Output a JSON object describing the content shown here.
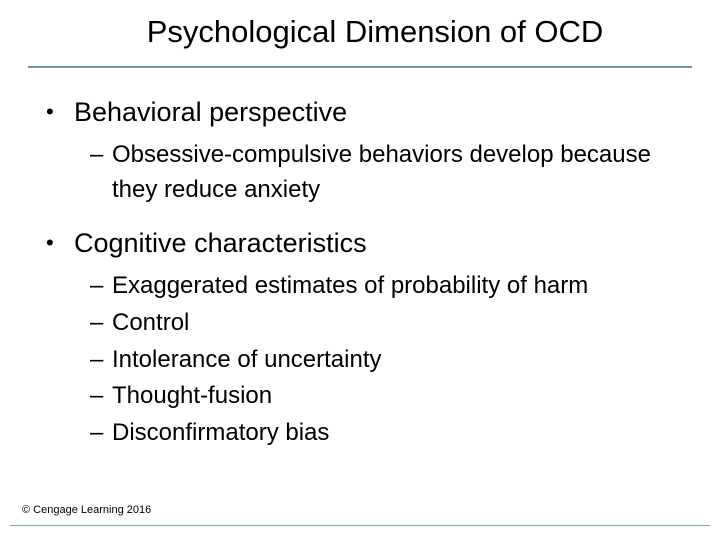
{
  "colors": {
    "text": "#000000",
    "background": "#ffffff",
    "rule": "#6a9aa3",
    "bottom_rule": "#7aa8b0"
  },
  "typography": {
    "family": "Arial",
    "title_fontsize": 31,
    "l1_fontsize": 27,
    "l2_fontsize": 24,
    "copyright_fontsize": 11
  },
  "title": "Psychological Dimension of OCD",
  "bullets": [
    {
      "label": "Behavioral perspective",
      "children": [
        "Obsessive-compulsive behaviors develop because they reduce anxiety"
      ]
    },
    {
      "label": "Cognitive characteristics",
      "children": [
        "Exaggerated estimates of probability of harm",
        "Control",
        "Intolerance of uncertainty",
        "Thought-fusion",
        "Disconfirmatory bias"
      ]
    }
  ],
  "copyright": "© Cengage Learning 2016"
}
